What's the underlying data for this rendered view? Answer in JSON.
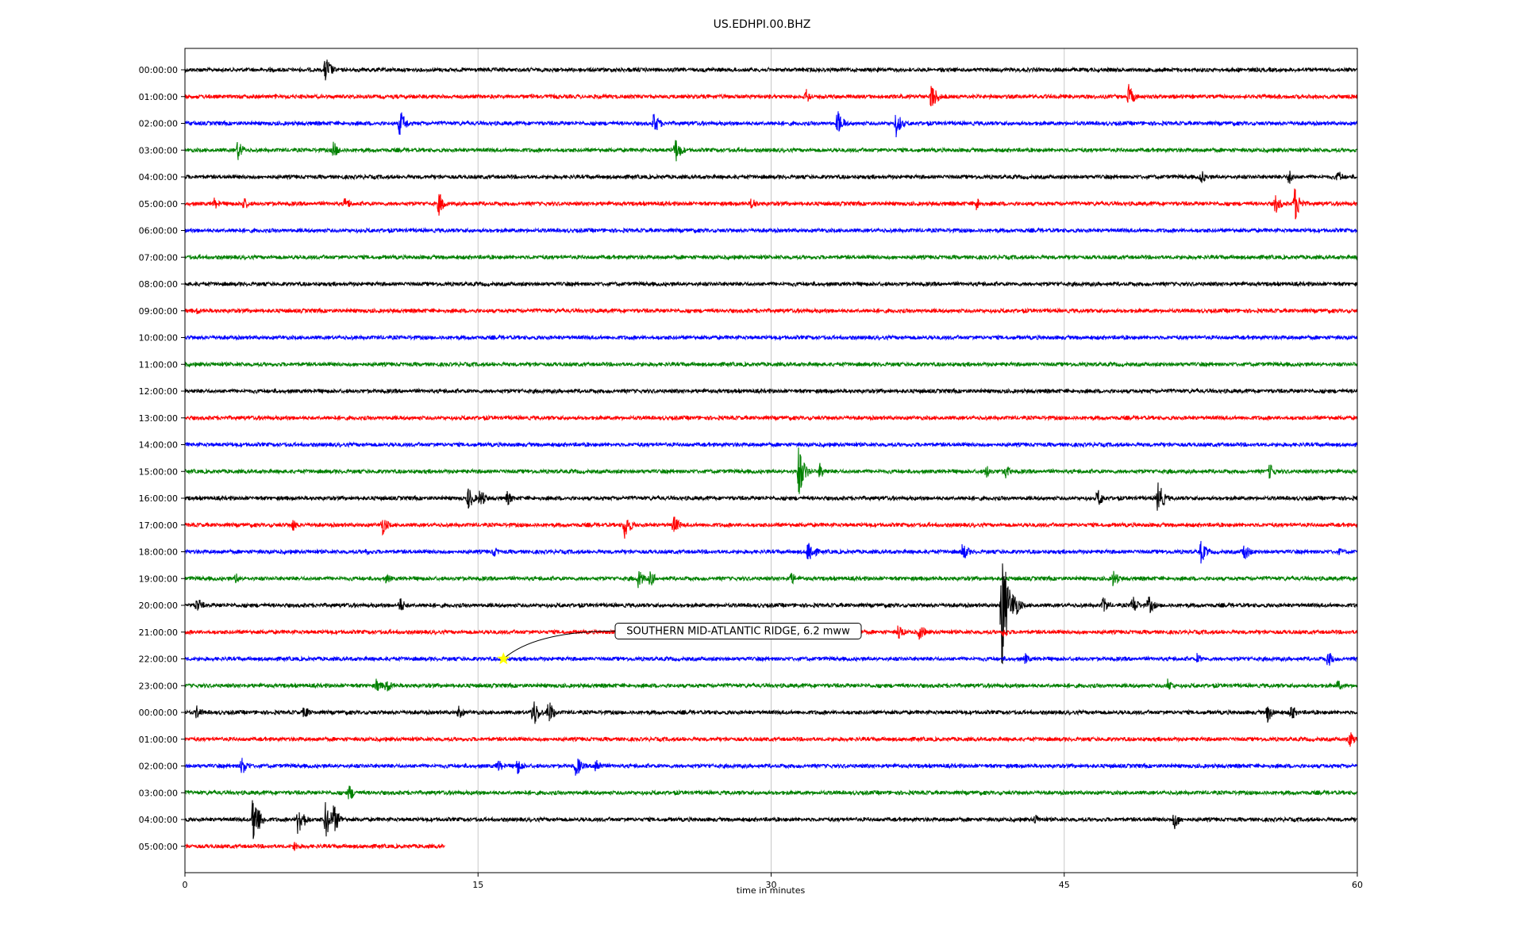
{
  "chart_data": {
    "type": "line",
    "title": "US.EDHPI.00.BHZ",
    "xlabel": "time in minutes",
    "ylabel": "",
    "xlim": [
      0,
      60
    ],
    "x_ticks": [
      0,
      15,
      30,
      45,
      60
    ],
    "x_tick_labels": [
      "0",
      "15",
      "30",
      "45",
      "60"
    ],
    "grid": "vertical",
    "colors": [
      "#000000",
      "#ff0000",
      "#0000ff",
      "#008000"
    ],
    "row_labels": [
      "00:00:00",
      "01:00:00",
      "02:00:00",
      "03:00:00",
      "04:00:00",
      "05:00:00",
      "06:00:00",
      "07:00:00",
      "08:00:00",
      "09:00:00",
      "10:00:00",
      "11:00:00",
      "12:00:00",
      "13:00:00",
      "14:00:00",
      "15:00:00",
      "16:00:00",
      "17:00:00",
      "18:00:00",
      "19:00:00",
      "20:00:00",
      "21:00:00",
      "22:00:00",
      "23:00:00",
      "00:00:00",
      "01:00:00",
      "02:00:00",
      "03:00:00",
      "04:00:00",
      "05:00:00"
    ],
    "last_row_end_minutes": 13.3,
    "events": [
      [
        [
          7.2,
          1.0
        ]
      ],
      [
        [
          31.8,
          0.5
        ],
        [
          38.2,
          1.0
        ],
        [
          48.3,
          0.8
        ]
      ],
      [
        [
          11.0,
          1.0
        ],
        [
          24.0,
          0.8
        ],
        [
          33.4,
          0.9
        ],
        [
          36.4,
          0.9
        ]
      ],
      [
        [
          2.7,
          0.7
        ],
        [
          7.6,
          0.6
        ],
        [
          25.1,
          0.9
        ]
      ],
      [
        [
          52.0,
          0.5
        ],
        [
          56.5,
          0.6
        ],
        [
          59.0,
          0.5
        ]
      ],
      [
        [
          1.5,
          0.4
        ],
        [
          3.0,
          0.5
        ],
        [
          8.2,
          0.5
        ],
        [
          13.0,
          0.8
        ],
        [
          29.0,
          0.5
        ],
        [
          40.5,
          0.5
        ],
        [
          55.8,
          0.7
        ],
        [
          56.8,
          1.2
        ]
      ],
      [],
      [],
      [],
      [
        [
          0.6,
          0.3
        ]
      ],
      [],
      [],
      [],
      [],
      [],
      [
        [
          31.4,
          1.8
        ],
        [
          32.5,
          0.6
        ],
        [
          41.0,
          0.5
        ],
        [
          42.0,
          0.5
        ],
        [
          55.5,
          0.6
        ]
      ],
      [
        [
          14.5,
          0.8
        ],
        [
          15.1,
          0.7
        ],
        [
          16.5,
          0.5
        ],
        [
          46.7,
          0.7
        ],
        [
          49.8,
          1.2
        ]
      ],
      [
        [
          5.5,
          0.5
        ],
        [
          10.1,
          0.7
        ],
        [
          22.5,
          1.0
        ],
        [
          25.0,
          0.7
        ]
      ],
      [
        [
          9.2,
          0.3
        ],
        [
          15.8,
          0.4
        ],
        [
          31.9,
          1.0
        ],
        [
          39.8,
          0.7
        ],
        [
          52.0,
          0.8
        ],
        [
          54.2,
          0.7
        ],
        [
          59.1,
          0.3
        ]
      ],
      [
        [
          2.6,
          0.4
        ],
        [
          10.3,
          0.4
        ],
        [
          23.2,
          0.7
        ],
        [
          23.8,
          0.6
        ],
        [
          31.0,
          0.5
        ],
        [
          47.5,
          0.6
        ]
      ],
      [
        [
          0.6,
          0.6
        ],
        [
          11.0,
          0.6
        ],
        [
          41.8,
          4.5
        ],
        [
          42.4,
          1.1
        ],
        [
          47.0,
          0.6
        ],
        [
          48.5,
          0.7
        ],
        [
          49.3,
          0.7
        ]
      ],
      [
        [
          36.5,
          0.6
        ],
        [
          37.6,
          0.6
        ],
        [
          41.9,
          0.4
        ]
      ],
      [
        [
          43.0,
          0.4
        ],
        [
          51.8,
          0.4
        ],
        [
          58.5,
          0.6
        ]
      ],
      [
        [
          9.8,
          0.5
        ],
        [
          10.3,
          0.6
        ],
        [
          50.3,
          0.5
        ],
        [
          59.0,
          0.4
        ]
      ],
      [
        [
          0.6,
          0.5
        ],
        [
          6.1,
          0.5
        ],
        [
          14.0,
          0.5
        ],
        [
          17.8,
          1.2
        ],
        [
          18.6,
          0.9
        ],
        [
          55.4,
          0.7
        ],
        [
          56.6,
          0.6
        ]
      ],
      [
        [
          59.6,
          0.6
        ]
      ],
      [
        [
          2.9,
          0.7
        ],
        [
          16.0,
          0.5
        ],
        [
          17.0,
          0.6
        ],
        [
          20.0,
          0.8
        ],
        [
          21.0,
          0.7
        ]
      ],
      [
        [
          8.4,
          0.6
        ]
      ],
      [
        [
          3.5,
          2.0
        ],
        [
          5.8,
          1.3
        ],
        [
          7.2,
          1.3
        ],
        [
          7.6,
          1.1
        ],
        [
          43.5,
          0.4
        ],
        [
          50.6,
          0.8
        ]
      ],
      [
        [
          5.6,
          0.4
        ]
      ]
    ],
    "annotations": [
      {
        "text": "SOUTHERN MID-ATLANTIC RIDGE, 6.2 mww",
        "row": 22,
        "minute": 16.3,
        "marker": "star",
        "marker_color": "#ffff00"
      }
    ]
  }
}
